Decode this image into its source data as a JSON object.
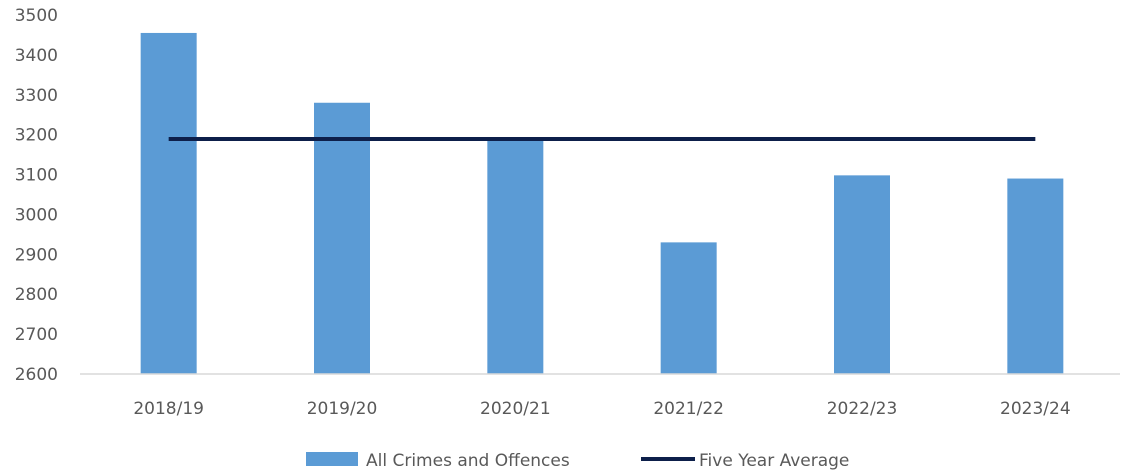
{
  "chart_data": {
    "type": "bar",
    "categories": [
      "2018/19",
      "2019/20",
      "2020/21",
      "2021/22",
      "2022/23",
      "2023/24"
    ],
    "series": [
      {
        "name": "All Crimes and Offences",
        "type": "bar",
        "color": "#5B9BD5",
        "values": [
          3455,
          3280,
          3190,
          2930,
          3098,
          3090
        ]
      },
      {
        "name": "Five Year Average",
        "type": "line",
        "color": "#0D1F4A",
        "values": [
          3189,
          3189,
          3189,
          3189,
          3189,
          3189
        ]
      }
    ],
    "ylim": [
      2600,
      3500
    ],
    "yticks": [
      2600,
      2700,
      2800,
      2900,
      3000,
      3100,
      3200,
      3300,
      3400,
      3500
    ],
    "grid": false,
    "legend_position": "bottom"
  }
}
